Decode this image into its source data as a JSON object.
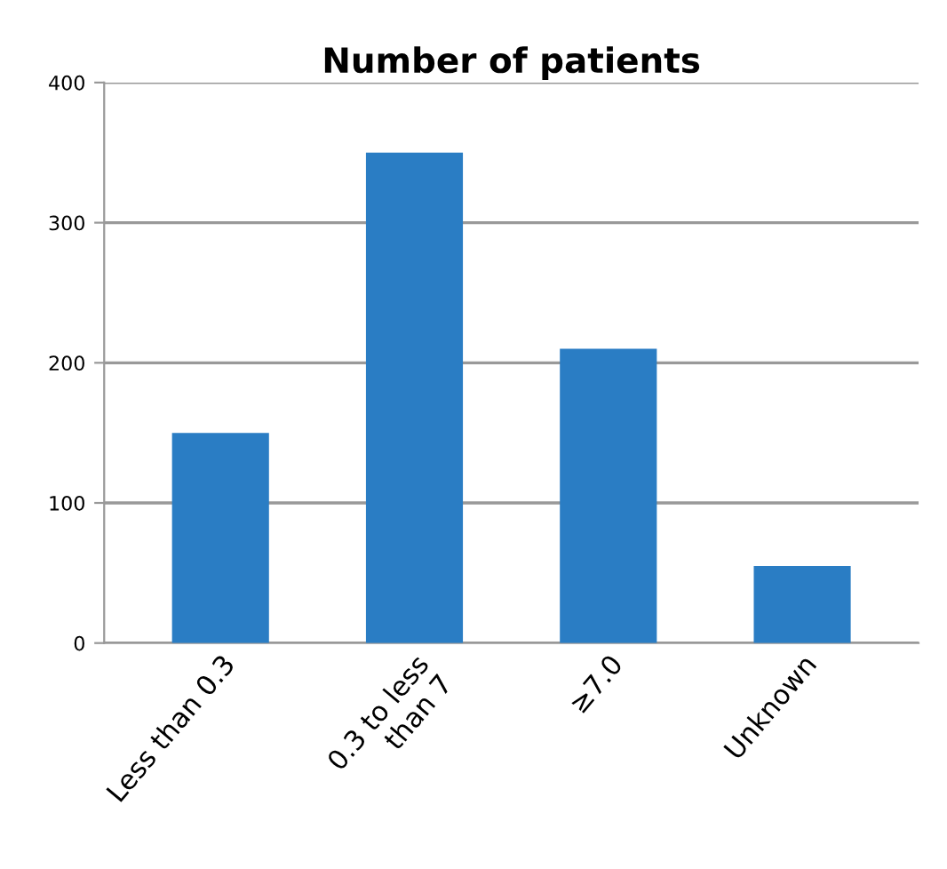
{
  "chart_data": {
    "type": "bar",
    "title": "Number of patients",
    "categories": [
      "Less than 0.3",
      "0.3 to less\nthan 7",
      "≥7.0",
      "Unknown"
    ],
    "values": [
      150,
      350,
      210,
      55
    ],
    "color": "#2a7dc4",
    "ylim": [
      0,
      400
    ],
    "yticks": [
      0,
      100,
      200,
      300,
      400
    ],
    "grid": "y"
  }
}
